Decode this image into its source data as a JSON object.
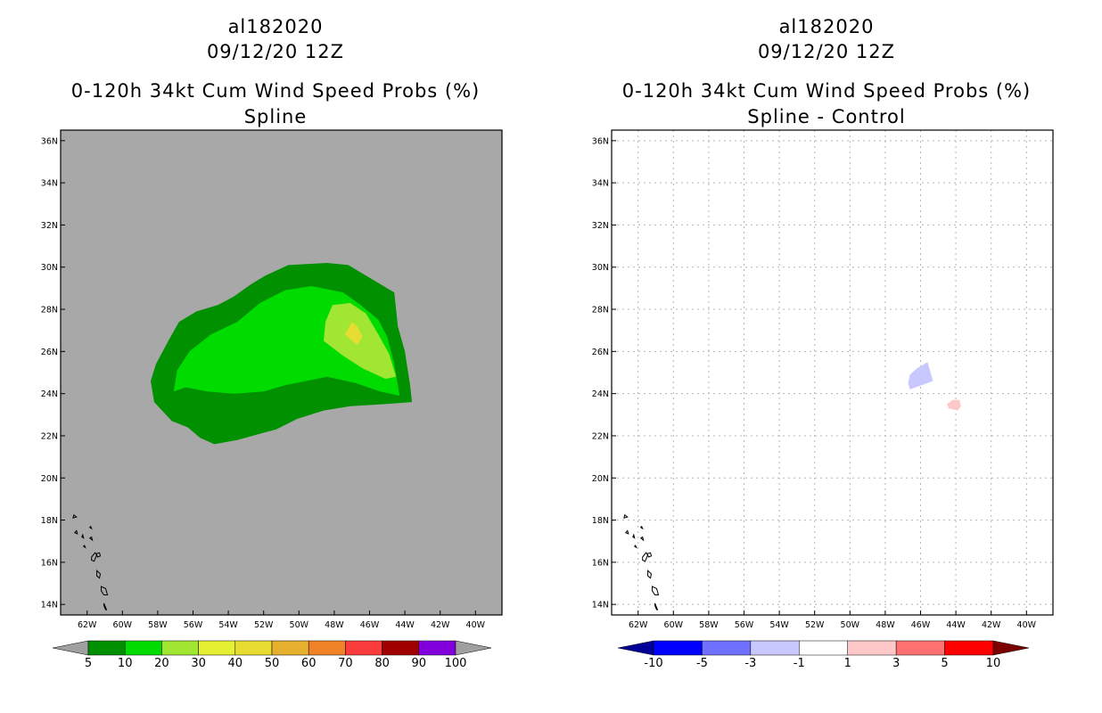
{
  "chart_data": [
    {
      "type": "heatmap",
      "storm_id": "al182020",
      "date": "09/12/20 12Z",
      "title": "0-120h 34kt Cum Wind Speed Probs (%)",
      "subtitle": "Spline",
      "background_color": "#a8a8a8",
      "lon_range": [
        -63.5,
        -38.5
      ],
      "lat_range": [
        13.5,
        36.5
      ],
      "x_ticks": [
        "62W",
        "60W",
        "58W",
        "56W",
        "54W",
        "52W",
        "50W",
        "48W",
        "46W",
        "44W",
        "42W",
        "40W"
      ],
      "y_ticks": [
        "14N",
        "16N",
        "18N",
        "20N",
        "22N",
        "24N",
        "26N",
        "28N",
        "30N",
        "32N",
        "34N",
        "36N"
      ],
      "grid": false,
      "contours": [
        {
          "level": "5-10",
          "color": "#009000",
          "polygon": [
            [
              -56.3,
              22.4
            ],
            [
              -57.2,
              22.7
            ],
            [
              -58.2,
              23.6
            ],
            [
              -58.4,
              24.6
            ],
            [
              -58.1,
              25.4
            ],
            [
              -57.4,
              26.5
            ],
            [
              -56.8,
              27.4
            ],
            [
              -55.8,
              27.9
            ],
            [
              -54.6,
              28.2
            ],
            [
              -53.7,
              28.6
            ],
            [
              -52.7,
              29.2
            ],
            [
              -51.9,
              29.6
            ],
            [
              -50.6,
              30.1
            ],
            [
              -48.4,
              30.2
            ],
            [
              -47.2,
              30.1
            ],
            [
              -45.4,
              29.2
            ],
            [
              -44.6,
              28.8
            ],
            [
              -44.4,
              27.2
            ],
            [
              -44.0,
              26.0
            ],
            [
              -43.7,
              24.4
            ],
            [
              -43.6,
              23.6
            ],
            [
              -45.2,
              23.5
            ],
            [
              -47.1,
              23.4
            ],
            [
              -48.6,
              23.2
            ],
            [
              -50.1,
              22.8
            ],
            [
              -51.3,
              22.3
            ],
            [
              -52.2,
              22.1
            ],
            [
              -53.5,
              21.8
            ],
            [
              -54.8,
              21.6
            ],
            [
              -55.6,
              21.9
            ]
          ]
        },
        {
          "level": "10-20",
          "color": "#00dc00",
          "polygon": [
            [
              -57.1,
              24.1
            ],
            [
              -56.4,
              24.3
            ],
            [
              -55.2,
              24.1
            ],
            [
              -53.7,
              24.0
            ],
            [
              -52.0,
              24.1
            ],
            [
              -50.8,
              24.4
            ],
            [
              -49.6,
              24.6
            ],
            [
              -48.4,
              24.8
            ],
            [
              -46.8,
              24.5
            ],
            [
              -45.4,
              24.1
            ],
            [
              -44.3,
              23.9
            ],
            [
              -44.6,
              25.4
            ],
            [
              -45.0,
              26.7
            ],
            [
              -45.5,
              27.5
            ],
            [
              -46.5,
              28.2
            ],
            [
              -47.5,
              28.8
            ],
            [
              -49.3,
              29.1
            ],
            [
              -50.8,
              28.9
            ],
            [
              -52.2,
              28.3
            ],
            [
              -53.5,
              27.4
            ],
            [
              -55.0,
              26.8
            ],
            [
              -56.2,
              26.0
            ],
            [
              -56.9,
              25.1
            ]
          ]
        },
        {
          "level": "20-30",
          "color": "#a0e632",
          "polygon": [
            [
              -48.6,
              26.5
            ],
            [
              -47.5,
              25.8
            ],
            [
              -46.4,
              25.2
            ],
            [
              -45.1,
              24.7
            ],
            [
              -44.5,
              24.8
            ],
            [
              -44.9,
              25.9
            ],
            [
              -45.5,
              26.8
            ],
            [
              -46.2,
              27.8
            ],
            [
              -47.1,
              28.3
            ],
            [
              -48.1,
              28.2
            ],
            [
              -48.5,
              27.4
            ]
          ]
        },
        {
          "level": "30-40",
          "color": "#e6dc32",
          "polygon": [
            [
              -47.4,
              26.8
            ],
            [
              -46.7,
              26.3
            ],
            [
              -46.4,
              26.7
            ],
            [
              -46.7,
              27.2
            ],
            [
              -47.0,
              27.4
            ]
          ]
        }
      ],
      "colorbar": {
        "labels": [
          "5",
          "10",
          "20",
          "30",
          "40",
          "50",
          "60",
          "70",
          "80",
          "90",
          "100"
        ],
        "colors": [
          "#a0a0a0",
          "#009000",
          "#00dc00",
          "#a0e632",
          "#e6f032",
          "#e6dc32",
          "#e6af2d",
          "#f08228",
          "#fa3c3c",
          "#a00000",
          "#8200dc",
          "#a0a0a0"
        ]
      }
    },
    {
      "type": "heatmap",
      "storm_id": "al182020",
      "date": "09/12/20 12Z",
      "title": "0-120h 34kt Cum Wind Speed Probs (%)",
      "subtitle": "Spline - Control",
      "background_color": "#ffffff",
      "lon_range": [
        -63.5,
        -38.5
      ],
      "lat_range": [
        13.5,
        36.5
      ],
      "x_ticks": [
        "62W",
        "60W",
        "58W",
        "56W",
        "54W",
        "52W",
        "50W",
        "48W",
        "46W",
        "44W",
        "42W",
        "40W"
      ],
      "y_ticks": [
        "14N",
        "16N",
        "18N",
        "20N",
        "22N",
        "24N",
        "26N",
        "28N",
        "30N",
        "32N",
        "34N",
        "36N"
      ],
      "grid": true,
      "contours": [
        {
          "level": "-3 to -1",
          "color": "#c8c8ff",
          "polygon": [
            [
              -46.6,
              24.2
            ],
            [
              -45.6,
              24.5
            ],
            [
              -45.3,
              24.6
            ],
            [
              -45.6,
              25.5
            ],
            [
              -46.2,
              25.2
            ],
            [
              -46.6,
              24.9
            ],
            [
              -46.7,
              24.5
            ]
          ]
        },
        {
          "level": "1 to 3",
          "color": "#ffc8c8",
          "polygon": [
            [
              -44.4,
              23.3
            ],
            [
              -43.9,
              23.2
            ],
            [
              -43.7,
              23.4
            ],
            [
              -43.8,
              23.7
            ],
            [
              -44.2,
              23.7
            ],
            [
              -44.5,
              23.5
            ]
          ]
        }
      ],
      "colorbar": {
        "labels": [
          "-10",
          "-5",
          "-3",
          "-1",
          "1",
          "3",
          "5",
          "10"
        ],
        "colors": [
          "#000096",
          "#0000ff",
          "#7070ff",
          "#c8c8ff",
          "#ffffff",
          "#ffc8c8",
          "#ff7070",
          "#ff0000",
          "#7d0000"
        ]
      }
    }
  ]
}
